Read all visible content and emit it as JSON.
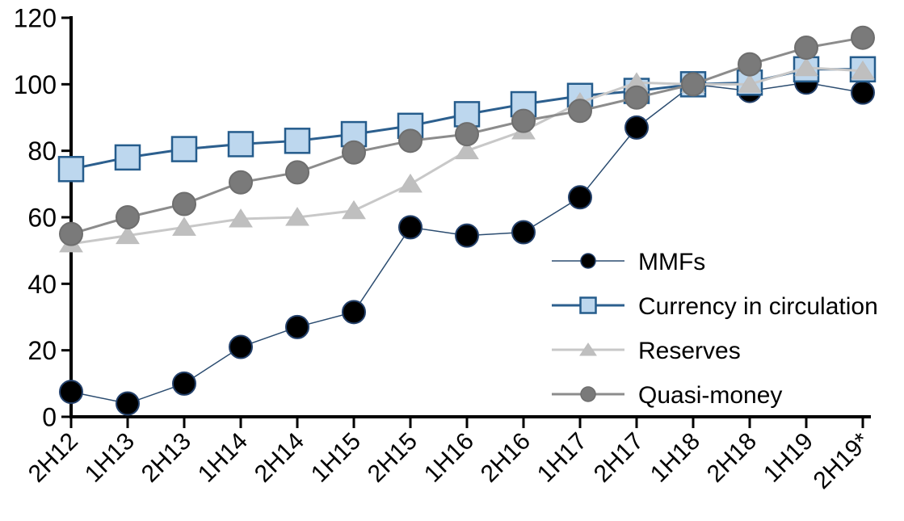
{
  "chart_data": {
    "type": "line",
    "title": "",
    "xlabel": "",
    "ylabel": "",
    "categories": [
      "2H12",
      "1H13",
      "2H13",
      "1H14",
      "2H14",
      "1H15",
      "2H15",
      "1H16",
      "2H16",
      "1H17",
      "2H17",
      "1H18",
      "2H18",
      "1H19",
      "2H19*"
    ],
    "series": [
      {
        "name": "MMFs",
        "marker": "circle",
        "marker_fill": "#000000",
        "marker_edge": "#24416B",
        "line_color": "#2B4C70",
        "line_width": 1.5,
        "values": [
          7.5,
          4,
          10,
          21,
          27,
          31.5,
          57,
          54.5,
          55.5,
          66,
          87,
          100,
          98,
          100.5,
          97.5
        ]
      },
      {
        "name": "Currency in circulation",
        "marker": "square",
        "marker_fill": "#BDD7EE",
        "marker_edge": "#255C8C",
        "line_color": "#2C5F8E",
        "line_width": 3,
        "values": [
          74.5,
          78,
          80.5,
          82,
          83,
          85,
          87.5,
          91,
          94,
          96.5,
          98,
          100,
          100.5,
          104.5,
          104.5
        ]
      },
      {
        "name": "Reserves",
        "marker": "triangle",
        "marker_fill": "#BFBFBF",
        "marker_edge": "#BDBDBD",
        "line_color": "#C8C8C8",
        "line_width": 3,
        "values": [
          52,
          54.5,
          57,
          59.5,
          60,
          62,
          70,
          80,
          86,
          94.5,
          100.5,
          100,
          100,
          105,
          104
        ]
      },
      {
        "name": "Quasi-money",
        "marker": "circle",
        "marker_fill": "#7A7A7A",
        "marker_edge": "#6E6E6E",
        "line_color": "#8C8C8C",
        "line_width": 3,
        "values": [
          55,
          60,
          64,
          70.5,
          73.5,
          79.5,
          83,
          85,
          89,
          92,
          96,
          100,
          106,
          111,
          114
        ]
      }
    ],
    "ylim": [
      0,
      120
    ],
    "yticks": [
      0,
      20,
      40,
      60,
      80,
      100,
      120
    ],
    "grid": false,
    "legend_position": "inside-right",
    "legend_order": [
      "MMFs",
      "Currency in circulation",
      "Reserves",
      "Quasi-money"
    ],
    "axis_color": "#000000"
  }
}
